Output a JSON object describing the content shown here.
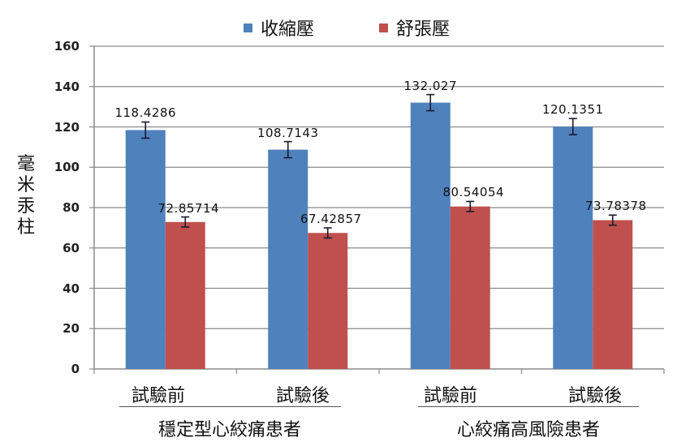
{
  "chart_data": {
    "type": "bar",
    "title": "",
    "xlabel": "",
    "ylabel": "毫米汞柱",
    "ylim": [
      0,
      160
    ],
    "yticks": [
      0,
      20,
      40,
      60,
      80,
      100,
      120,
      140,
      160
    ],
    "grid": true,
    "legend_position": "top",
    "categories": [
      "試驗前",
      "試驗後",
      "試驗前",
      "試驗後"
    ],
    "groups": [
      {
        "label": "穩定型心絞痛患者",
        "categories": [
          "試驗前",
          "試驗後"
        ]
      },
      {
        "label": "心絞痛高風險患者",
        "categories": [
          "試驗前",
          "試驗後"
        ]
      }
    ],
    "series": [
      {
        "name": "收縮壓",
        "color": "#4F81BD",
        "values": [
          118.4286,
          108.7143,
          132.027,
          120.1351
        ],
        "labels": [
          "118.4286",
          "108.7143",
          "132.027",
          "120.1351"
        ],
        "error": [
          4,
          4,
          4,
          4
        ]
      },
      {
        "name": "舒張壓",
        "color": "#C0504D",
        "values": [
          72.85714,
          67.42857,
          80.54054,
          73.78378
        ],
        "labels": [
          "72.85714",
          "67.42857",
          "80.54054",
          "73.78378"
        ],
        "error": [
          2.5,
          2.5,
          2.5,
          2.5
        ]
      }
    ]
  },
  "legend": {
    "items": [
      {
        "label": "收縮壓",
        "color": "#4F81BD"
      },
      {
        "label": "舒張壓",
        "color": "#C0504D"
      }
    ]
  },
  "axis": {
    "ylabel_chars": [
      "毫",
      "米",
      "汞",
      "柱"
    ],
    "yticks": [
      "0",
      "20",
      "40",
      "60",
      "80",
      "100",
      "120",
      "140",
      "160"
    ]
  },
  "xaxis": {
    "categories": [
      "試驗前",
      "試驗後",
      "試驗前",
      "試驗後"
    ],
    "groups": [
      "穩定型心絞痛患者",
      "心絞痛高風險患者"
    ]
  }
}
